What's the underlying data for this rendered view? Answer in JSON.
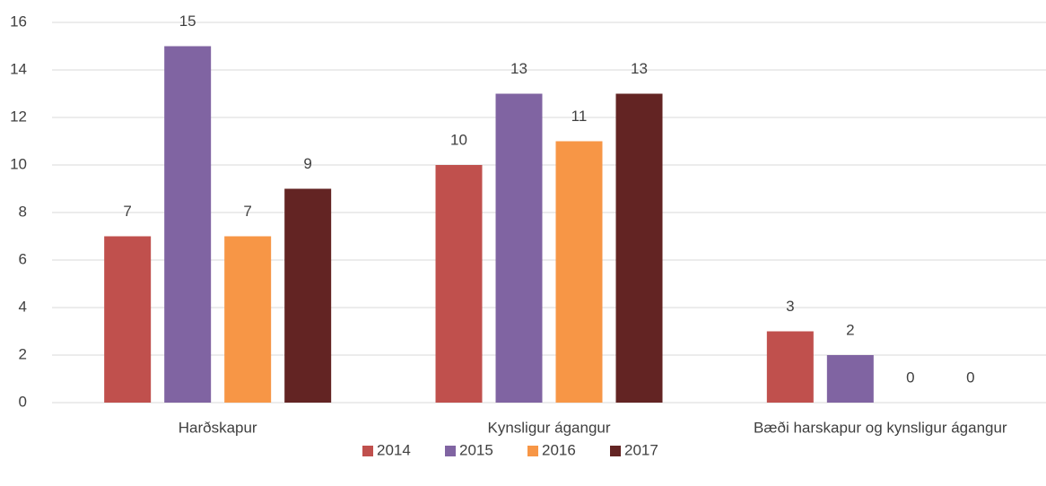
{
  "chart_data": {
    "type": "bar",
    "categories": [
      "Harðskapur",
      "Kynsligur ágangur",
      "Bæði harskapur og kynsligur ágangur"
    ],
    "series": [
      {
        "name": "2014",
        "color": "#c0504d",
        "values": [
          7,
          10,
          3
        ]
      },
      {
        "name": "2015",
        "color": "#8064a2",
        "values": [
          15,
          13,
          2
        ]
      },
      {
        "name": "2016",
        "color": "#f79646",
        "values": [
          7,
          11,
          0
        ]
      },
      {
        "name": "2017",
        "color": "#632423",
        "values": [
          9,
          13,
          0
        ]
      }
    ],
    "ylim": [
      0,
      16
    ],
    "yticks": [
      0,
      2,
      4,
      6,
      8,
      10,
      12,
      14,
      16
    ],
    "grid": true,
    "legend": "bottom"
  }
}
